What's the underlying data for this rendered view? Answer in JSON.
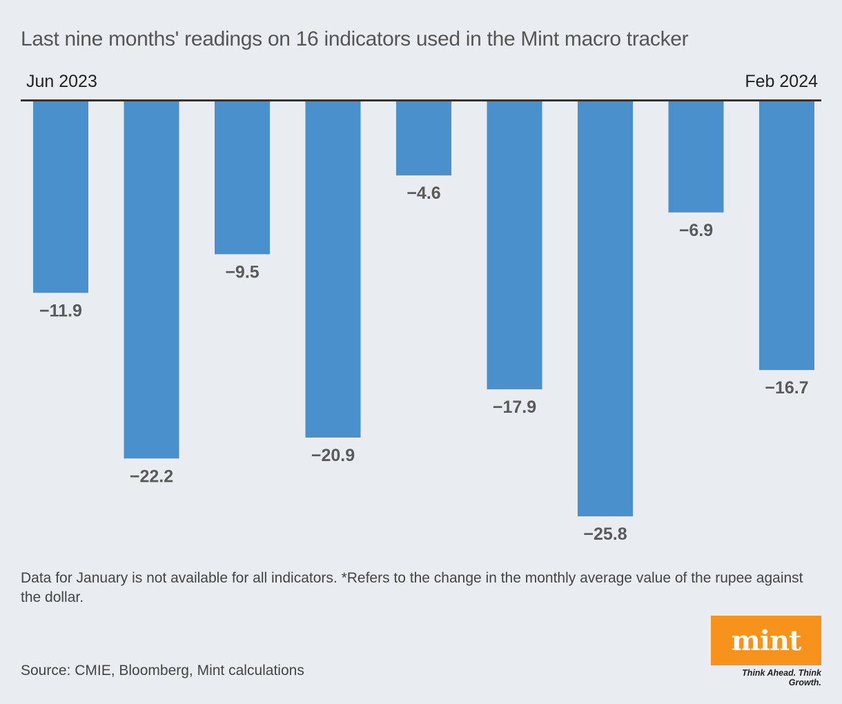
{
  "title": "Last nine months' readings on 16 indicators used in the Mint macro tracker",
  "range": {
    "start": "Jun 2023",
    "end": "Feb 2024"
  },
  "chart_data": {
    "type": "bar",
    "title": "Last nine months' readings on 16 indicators used in the Mint macro tracker",
    "values": [
      -11.9,
      -22.2,
      -9.5,
      -20.9,
      -4.6,
      -17.9,
      -25.8,
      -6.9,
      -16.7
    ],
    "labels": [
      "−11.9",
      "−22.2",
      "−9.5",
      "−20.9",
      "−4.6",
      "−17.9",
      "−25.8",
      "−6.9",
      "−16.7"
    ],
    "xlabel": "",
    "ylabel": "",
    "grid": false,
    "bar_color": "#4a90cc"
  },
  "note": "Data for January is not available for all indicators. *Refers to the change in the monthly average value of the rupee against the dollar.",
  "source": "Source: CMIE, Bloomberg, Mint calculations",
  "logo": {
    "text": "mint",
    "tagline": "Think Ahead. Think Growth.",
    "color": "#f7931d"
  }
}
